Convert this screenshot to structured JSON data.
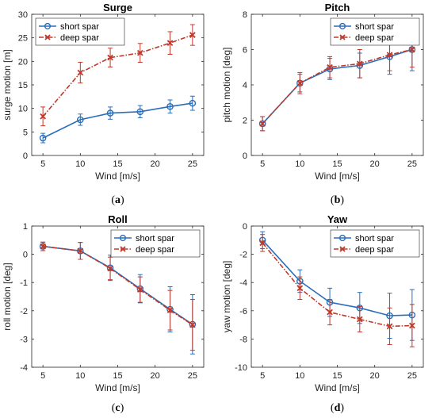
{
  "chart_data": [
    {
      "type": "line",
      "panel_label": "a",
      "title": "Surge",
      "xlabel": "Wind [m/s]",
      "ylabel": "surge motion [m]",
      "xlim": [
        3.5,
        26.5
      ],
      "ylim": [
        0,
        30
      ],
      "xticks": [
        5,
        10,
        15,
        20,
        25
      ],
      "yticks": [
        0,
        5,
        10,
        15,
        20,
        25,
        30
      ],
      "legend": "top-left",
      "x": [
        5,
        10,
        14,
        18,
        22,
        25
      ],
      "series": [
        {
          "name": "short spar",
          "color": "#2a6ebb",
          "marker": "circle",
          "dash": "solid",
          "values": [
            3.7,
            7.6,
            9.0,
            9.3,
            10.4,
            11.1
          ],
          "errors": [
            1.0,
            1.2,
            1.3,
            1.3,
            1.4,
            1.5
          ]
        },
        {
          "name": "deep spar",
          "color": "#c0392b",
          "marker": "x",
          "dash": "dashdot",
          "values": [
            8.3,
            17.6,
            20.8,
            21.8,
            23.9,
            25.6
          ],
          "errors": [
            2.0,
            2.2,
            2.0,
            2.0,
            2.4,
            2.2
          ]
        }
      ]
    },
    {
      "type": "line",
      "panel_label": "b",
      "title": "Pitch",
      "xlabel": "Wind [m/s]",
      "ylabel": "pitch motion [deg]",
      "xlim": [
        3.5,
        26.5
      ],
      "ylim": [
        0,
        8
      ],
      "xticks": [
        5,
        10,
        15,
        20,
        25
      ],
      "yticks": [
        0,
        2,
        4,
        6,
        8
      ],
      "legend": "top-right",
      "x": [
        5,
        10,
        14,
        18,
        22,
        25
      ],
      "series": [
        {
          "name": "short spar",
          "color": "#2a6ebb",
          "marker": "circle",
          "dash": "solid",
          "values": [
            1.8,
            4.1,
            4.9,
            5.1,
            5.6,
            6.0
          ],
          "errors": [
            0.4,
            0.5,
            0.6,
            0.7,
            1.0,
            1.2
          ]
        },
        {
          "name": "deep spar",
          "color": "#c0392b",
          "marker": "x",
          "dash": "dashdot",
          "values": [
            1.8,
            4.1,
            5.0,
            5.2,
            5.7,
            6.0
          ],
          "errors": [
            0.4,
            0.6,
            0.6,
            0.8,
            0.9,
            1.0
          ]
        }
      ]
    },
    {
      "type": "line",
      "panel_label": "c",
      "title": "Roll",
      "xlabel": "Wind [m/s]",
      "ylabel": "roll motion [deg]",
      "xlim": [
        3.5,
        26.5
      ],
      "ylim": [
        -4,
        1
      ],
      "xticks": [
        5,
        10,
        15,
        20,
        25
      ],
      "yticks": [
        -4,
        -3,
        -2,
        -1,
        0,
        1
      ],
      "legend": "top-right",
      "x": [
        5,
        10,
        14,
        18,
        22,
        25
      ],
      "series": [
        {
          "name": "short spar",
          "color": "#2a6ebb",
          "marker": "circle",
          "dash": "solid",
          "values": [
            0.28,
            0.12,
            -0.48,
            -1.22,
            -1.95,
            -2.48
          ],
          "errors": [
            0.15,
            0.3,
            0.45,
            0.5,
            0.8,
            1.05
          ]
        },
        {
          "name": "deep spar",
          "color": "#c0392b",
          "marker": "x",
          "dash": "dashdot",
          "values": [
            0.28,
            0.12,
            -0.5,
            -1.25,
            -1.98,
            -2.5
          ],
          "errors": [
            0.15,
            0.3,
            0.4,
            0.45,
            0.7,
            0.9
          ]
        }
      ]
    },
    {
      "type": "line",
      "panel_label": "d",
      "title": "Yaw",
      "xlabel": "Wind [m/s]",
      "ylabel": "yaw motion [deg]",
      "xlim": [
        3.5,
        26.5
      ],
      "ylim": [
        -10,
        0
      ],
      "xticks": [
        5,
        10,
        15,
        20,
        25
      ],
      "yticks": [
        -10,
        -8,
        -6,
        -4,
        -2,
        0
      ],
      "legend": "top-right",
      "x": [
        5,
        10,
        14,
        18,
        22,
        25
      ],
      "series": [
        {
          "name": "short spar",
          "color": "#2a6ebb",
          "marker": "circle",
          "dash": "solid",
          "values": [
            -1.0,
            -3.9,
            -5.4,
            -5.8,
            -6.35,
            -6.3
          ],
          "errors": [
            0.6,
            0.8,
            1.0,
            1.1,
            1.6,
            1.8
          ]
        },
        {
          "name": "deep spar",
          "color": "#c0392b",
          "marker": "x",
          "dash": "dashdot",
          "values": [
            -1.2,
            -4.4,
            -6.1,
            -6.6,
            -7.1,
            -7.05
          ],
          "errors": [
            0.6,
            0.8,
            0.9,
            0.9,
            1.3,
            1.5
          ]
        }
      ]
    }
  ]
}
